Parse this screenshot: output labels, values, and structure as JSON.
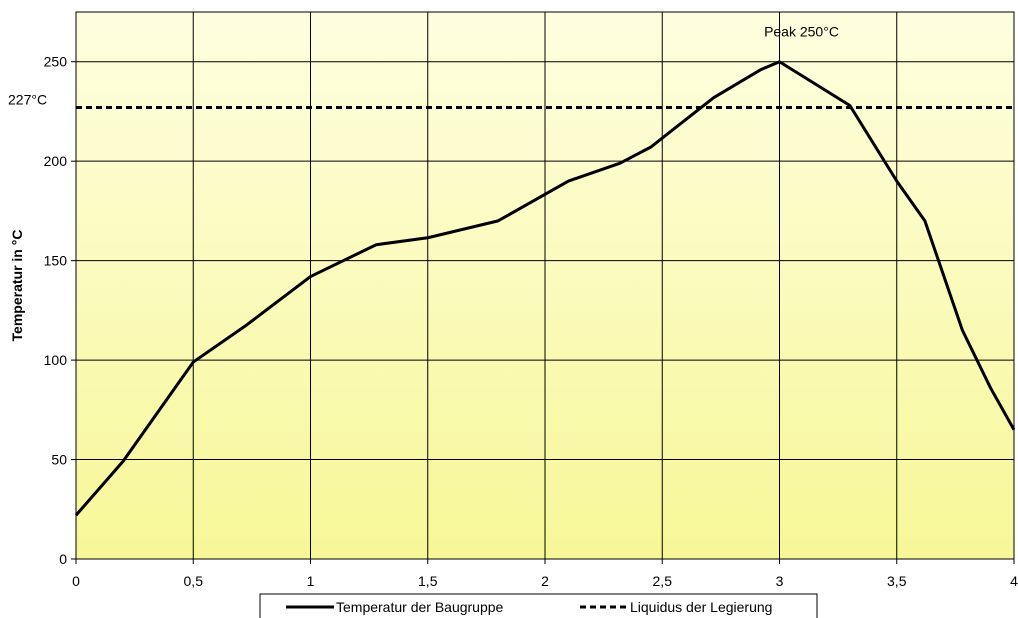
{
  "chart_data": {
    "type": "line",
    "title": "",
    "xlabel": "",
    "ylabel": "Temperatur in °C",
    "xlim": [
      0,
      4
    ],
    "ylim": [
      0,
      275
    ],
    "x_ticks": [
      "0",
      "0,5",
      "1",
      "1,5",
      "2",
      "2,5",
      "3",
      "3,5",
      "4"
    ],
    "y_ticks": [
      "0",
      "50",
      "100",
      "150",
      "200",
      "250"
    ],
    "grid": true,
    "background": "yellow-gradient",
    "colors": {
      "line": "#000000",
      "grid": "#000000",
      "bg_top": "#fefee0",
      "bg_bottom": "#f7f798"
    },
    "legend_position": "bottom",
    "series": [
      {
        "name": "Temperatur der Baugruppe",
        "style": "solid",
        "x": [
          0,
          0.2,
          0.5,
          0.72,
          1,
          1.28,
          1.5,
          1.8,
          2.1,
          2.32,
          2.45,
          2.72,
          2.92,
          3,
          3.3,
          3.5,
          3.62,
          3.78,
          3.9,
          4
        ],
        "y": [
          22,
          49,
          99,
          117,
          142,
          158,
          161.5,
          170,
          190,
          199,
          207,
          232,
          246,
          250,
          228,
          190,
          170,
          115,
          86,
          65
        ]
      },
      {
        "name": "Liquidus der Legierung",
        "style": "dashed",
        "x": [
          0,
          4
        ],
        "y": [
          227,
          227
        ]
      }
    ],
    "annotations": [
      {
        "text": "Peak 250°C",
        "x": 3,
        "y": 250
      },
      {
        "text": "227°C",
        "y": 227
      }
    ]
  }
}
